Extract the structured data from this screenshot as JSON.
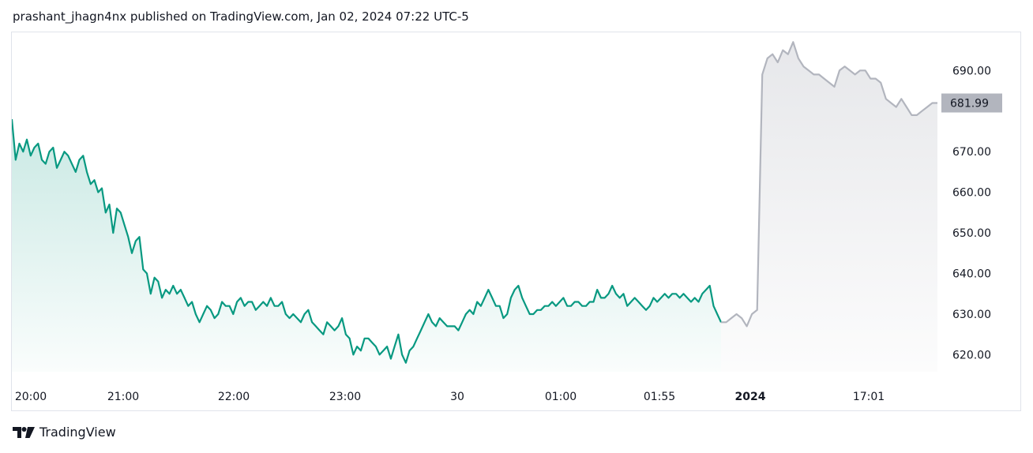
{
  "header": {
    "text": "prashant_jhagn4nx published on TradingView.com, Jan 02, 2024 07:22 UTC-5"
  },
  "footer": {
    "brand": "TradingView",
    "logo_icon": "tradingview-logo-icon"
  },
  "colors": {
    "main_line": "#089981",
    "extended_line": "#b2b5be",
    "price_tag_bg": "#b2b5be",
    "grid_border": "#e0e3eb"
  },
  "chart_data": {
    "type": "area",
    "y_axis_ticks": [
      "690.00",
      "670.00",
      "660.00",
      "650.00",
      "640.00",
      "630.00",
      "620.00"
    ],
    "y_axis_tick_values": [
      690,
      670,
      660,
      650,
      640,
      630,
      620
    ],
    "ylim": [
      616,
      699
    ],
    "x_axis_ticks": [
      {
        "label": "20:00",
        "bold": false
      },
      {
        "label": "21:00",
        "bold": false
      },
      {
        "label": "22:00",
        "bold": false
      },
      {
        "label": "23:00",
        "bold": false
      },
      {
        "label": "30",
        "bold": false
      },
      {
        "label": "01:00",
        "bold": false
      },
      {
        "label": "01:55",
        "bold": false
      },
      {
        "label": "2024",
        "bold": true
      },
      {
        "label": "17:01",
        "bold": false
      }
    ],
    "last_price": "681.99",
    "series": [
      {
        "style": "main",
        "values": [
          678,
          668,
          672,
          670,
          673,
          669,
          671,
          672,
          668,
          667,
          670,
          671,
          666,
          668,
          670,
          669,
          667,
          665,
          668,
          669,
          665,
          662,
          663,
          660,
          661,
          655,
          657,
          650,
          656,
          655,
          652,
          649,
          645,
          648,
          649,
          641,
          640,
          635,
          639,
          638,
          634,
          636,
          635,
          637,
          635,
          636,
          634,
          632,
          633,
          630,
          628,
          630,
          632,
          631,
          629,
          630,
          633,
          632,
          632,
          630,
          633,
          634,
          632,
          633,
          633,
          631,
          632,
          633,
          632,
          634,
          632,
          632,
          633,
          630,
          629,
          630,
          629,
          628,
          630,
          631,
          628,
          627,
          626,
          625,
          628,
          627,
          626,
          627,
          629,
          625,
          624,
          620,
          622,
          621,
          624,
          624,
          623,
          622,
          620,
          621,
          622,
          619,
          622,
          625,
          620,
          618,
          621,
          622,
          624,
          626,
          628,
          630,
          628,
          627,
          629,
          628,
          627,
          627,
          627,
          626,
          628,
          630,
          631,
          630,
          633,
          632,
          634,
          636,
          634,
          632,
          632,
          629,
          630,
          634,
          636,
          637,
          634,
          632,
          630,
          630,
          631,
          631,
          632,
          632,
          633,
          632,
          633,
          634,
          632,
          632,
          633,
          633,
          632,
          632,
          633,
          633,
          636,
          634,
          634,
          635,
          637,
          635,
          634,
          635,
          632,
          633,
          634,
          633,
          632,
          631,
          632,
          634,
          633,
          634,
          635,
          634,
          635,
          635,
          634,
          635,
          634,
          633,
          634,
          633,
          635,
          636,
          637,
          632,
          630,
          628
        ]
      },
      {
        "style": "extended",
        "values": [
          628,
          628,
          629,
          630,
          629,
          627,
          630,
          631,
          689,
          693,
          694,
          692,
          695,
          694,
          697,
          693,
          691,
          690,
          689,
          689,
          688,
          687,
          686,
          690,
          691,
          690,
          689,
          690,
          690,
          688,
          688,
          687,
          683,
          682,
          681,
          683,
          681,
          679,
          679,
          680,
          681,
          682,
          682
        ]
      }
    ]
  }
}
